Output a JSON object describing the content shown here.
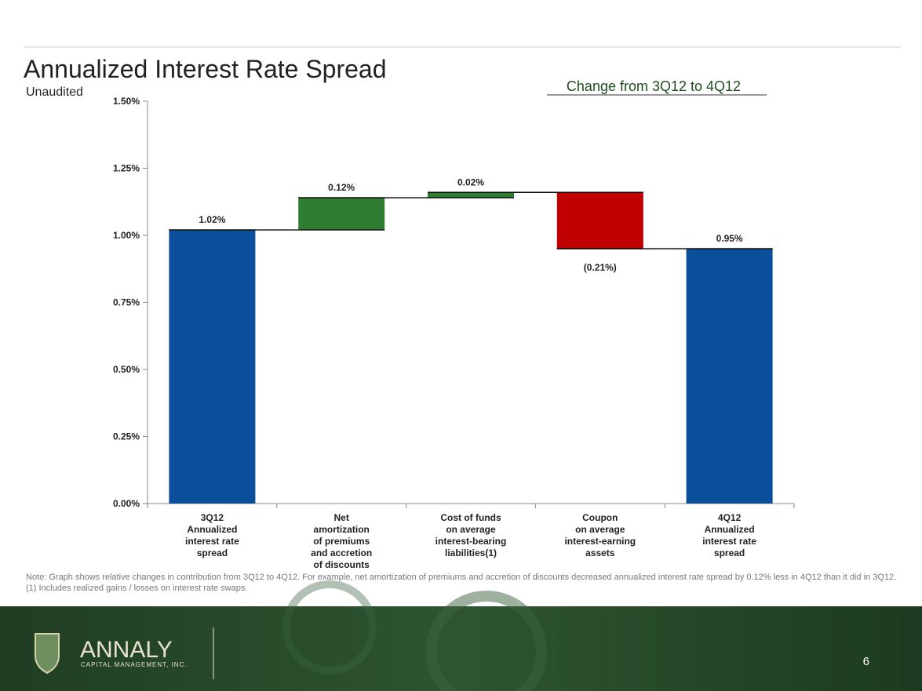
{
  "chart_data": {
    "type": "waterfall",
    "title": "Annualized Interest Rate Spread",
    "subtitle": "Unaudited",
    "annotation": "Change from 3Q12 to 4Q12",
    "categories": [
      [
        "3Q12",
        "Annualized",
        "interest rate",
        "spread"
      ],
      [
        "Net",
        "amortization",
        "of premiums",
        "and accretion",
        "of discounts"
      ],
      [
        "Cost of funds",
        "on average",
        "interest-bearing",
        "liabilities(1)"
      ],
      [
        "Coupon",
        "on average",
        "interest-earning",
        "assets"
      ],
      [
        "4Q12",
        "Annualized",
        "interest rate",
        "spread"
      ]
    ],
    "values": [
      1.02,
      0.12,
      0.02,
      -0.21,
      0.95
    ],
    "value_labels": [
      "1.02%",
      "0.12%",
      "0.02%",
      "(0.21%)",
      "0.95%"
    ],
    "measure": [
      "absolute",
      "relative",
      "relative",
      "relative",
      "absolute"
    ],
    "colors": {
      "absolute": "#0b4f9b",
      "increase": "#2e7d32",
      "decrease": "#c00000"
    },
    "ylim": [
      0,
      1.5
    ],
    "yticks": [
      {
        "value": 0,
        "label": "0.00%"
      },
      {
        "value": 0.25,
        "label": "0.25%"
      },
      {
        "value": 0.5,
        "label": "0.50%"
      },
      {
        "value": 0.75,
        "label": "0.75%"
      },
      {
        "value": 1,
        "label": "1.00%"
      },
      {
        "value": 1.25,
        "label": "1.25%"
      },
      {
        "value": 1.5,
        "label": "1.50%"
      }
    ],
    "grid": false,
    "notes": [
      "Note:  Graph shows relative changes in contribution from 3Q12 to 4Q12.  For example, net amortization of premiums and accretion of discounts decreased annualized interest rate spread by 0.12% less in 4Q12 than it did in 3Q12.",
      "(1) Includes realized gains / losses on interest rate swaps."
    ]
  },
  "footer": {
    "logo": "ANNALY",
    "logo_sub": "CAPITAL MANAGEMENT, INC.",
    "page": "6"
  }
}
